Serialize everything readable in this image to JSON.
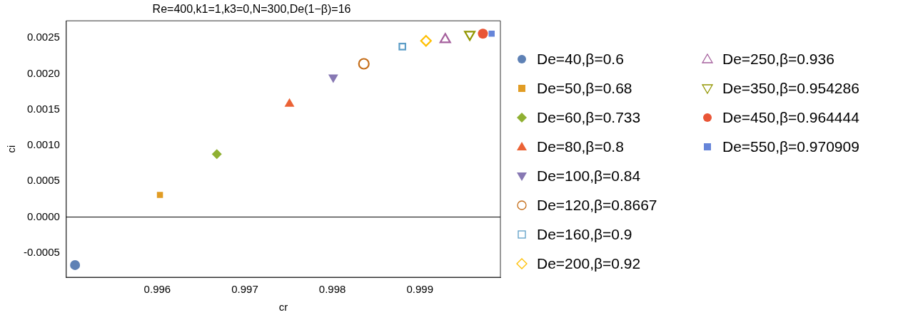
{
  "chart_data": {
    "type": "scatter",
    "title": "Re=400,k1=1,k3=0,N=300,De(1−β)=16",
    "xlabel": "cr",
    "ylabel": "ci",
    "xlim": [
      0.99496,
      0.99992
    ],
    "ylim": [
      -0.00084,
      0.00274
    ],
    "xticks": [
      0.996,
      0.997,
      0.998,
      0.999
    ],
    "yticks": [
      {
        "value": -0.0005,
        "label": "-0.0005"
      },
      {
        "value": 0,
        "label": "0.0000"
      },
      {
        "value": 0.0005,
        "label": "0.0005"
      },
      {
        "value": 0.001,
        "label": "0.0010"
      },
      {
        "value": 0.0015,
        "label": "0.0015"
      },
      {
        "value": 0.002,
        "label": "0.0020"
      },
      {
        "value": 0.0025,
        "label": "0.0025"
      }
    ],
    "grid": false,
    "legend": "right",
    "ref_lines": [
      {
        "axis": "y",
        "value": 0,
        "color": "#000000"
      }
    ],
    "series": [
      {
        "name": "De=40,β=0.6",
        "color": "#5e81b5",
        "marker": "circle",
        "x": [
          0.99506
        ],
        "values": [
          -0.00067
        ]
      },
      {
        "name": "De=50,β=0.68",
        "color": "#e19c24",
        "marker": "square",
        "x": [
          0.99603
        ],
        "values": [
          0.00031
        ]
      },
      {
        "name": "De=60,β=0.733",
        "color": "#8fb032",
        "marker": "diamond",
        "x": [
          0.99668
        ],
        "values": [
          0.00088
        ]
      },
      {
        "name": "De=80,β=0.8",
        "color": "#eb6235",
        "marker": "triangle",
        "x": [
          0.99751
        ],
        "values": [
          0.00158
        ]
      },
      {
        "name": "De=100,β=0.84",
        "color": "#8778b3",
        "marker": "triangle-down",
        "x": [
          0.99801
        ],
        "values": [
          0.00195
        ]
      },
      {
        "name": "De=120,β=0.8667",
        "color": "#c56e1a",
        "marker": "circle-open",
        "x": [
          0.99836
        ],
        "values": [
          0.00214
        ]
      },
      {
        "name": "De=160,β=0.9",
        "color": "#5d9ec7",
        "marker": "square-open",
        "x": [
          0.9988
        ],
        "values": [
          0.00238
        ]
      },
      {
        "name": "De=200,β=0.92",
        "color": "#ffbf00",
        "marker": "diamond-open",
        "x": [
          0.99907
        ],
        "values": [
          0.00246
        ]
      },
      {
        "name": "De=250,β=0.936",
        "color": "#a5609d",
        "marker": "triangle-open",
        "x": [
          0.99929
        ],
        "values": [
          0.00248
        ]
      },
      {
        "name": "De=350,β=0.954286",
        "color": "#929600",
        "marker": "triangle-down-open",
        "x": [
          0.99957
        ],
        "values": [
          0.00255
        ]
      },
      {
        "name": "De=450,β=0.964444",
        "color": "#e95536",
        "marker": "circle",
        "x": [
          0.99972
        ],
        "values": [
          0.00256
        ]
      },
      {
        "name": "De=550,β=0.970909",
        "color": "#6685d9",
        "marker": "square",
        "x": [
          0.99982
        ],
        "values": [
          0.00256
        ]
      }
    ]
  }
}
